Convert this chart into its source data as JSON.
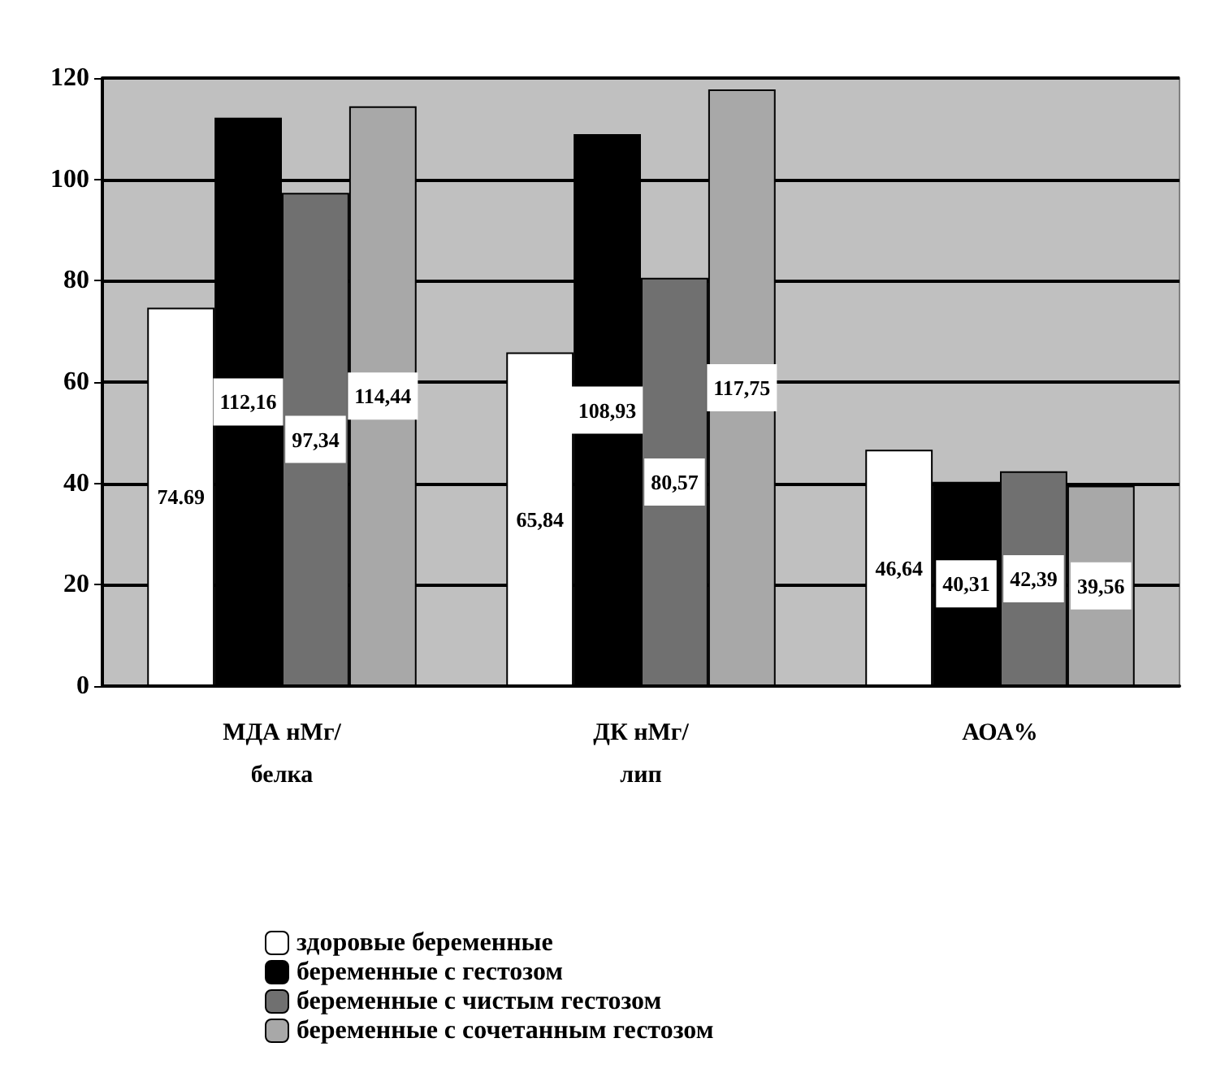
{
  "chart_data": {
    "type": "bar",
    "categories": [
      "МДА нМг/белка",
      "ДК нМг/лип",
      "АОА%"
    ],
    "series": [
      {
        "name": "здоровые беременные",
        "color": "#ffffff",
        "values": [
          74.69,
          65.84,
          46.64
        ],
        "value_labels": [
          "74.69",
          "65,84",
          "46,64"
        ]
      },
      {
        "name": "беременные с гестозом",
        "color": "#000000",
        "values": [
          112.16,
          108.93,
          40.31
        ],
        "value_labels": [
          "112,16",
          "108,93",
          "40,31"
        ]
      },
      {
        "name": "беременные с чистым гестозом",
        "color": "#707070",
        "values": [
          97.34,
          80.57,
          42.39
        ],
        "value_labels": [
          "97,34",
          "80,57",
          "42,39"
        ]
      },
      {
        "name": "беременные с сочетанным гестозом",
        "color": "#a8a8a8",
        "values": [
          114.44,
          117.75,
          39.56
        ],
        "value_labels": [
          "114,44",
          "117,75",
          "39,56"
        ]
      }
    ],
    "ylim": [
      0,
      120
    ],
    "yticks": [
      0,
      20,
      40,
      60,
      80,
      100,
      120
    ],
    "grid": "y",
    "legend": "bottom"
  }
}
